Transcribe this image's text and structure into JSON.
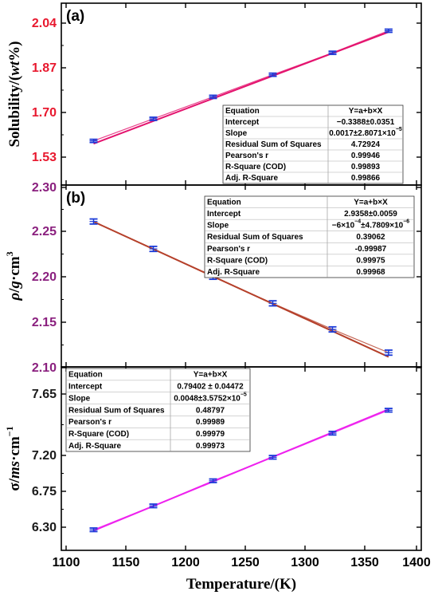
{
  "chart_data": [
    {
      "type": "line",
      "panel_label": "(a)",
      "ylabel": "Solubility/(wt%)",
      "ylabel_parts": [
        "Solubility/(",
        "wt",
        "%)"
      ],
      "x": [
        1123,
        1173,
        1223,
        1273,
        1323,
        1373
      ],
      "y": [
        1.5918,
        1.6758,
        1.7594,
        1.8436,
        1.9271,
        2.0111
      ],
      "error": [
        0.006,
        0.006,
        0.006,
        0.006,
        0.006,
        0.006
      ],
      "fit_y": [
        1.581,
        1.666,
        1.751,
        1.836,
        1.921,
        2.006
      ],
      "ylim": [
        1.51,
        2.07
      ],
      "yticks": [
        "1.53",
        "1.70",
        "1.87",
        "2.04"
      ],
      "ytick_values": [
        1.53,
        1.7,
        1.87,
        2.04
      ],
      "tick_color": "#e8182e",
      "line_color": "#e4136e",
      "table": {
        "header": [
          "Equation",
          "Y=a+b×X"
        ],
        "rows": [
          {
            "label": "Intercept",
            "value": "−0.3388±0.0351"
          },
          {
            "label": "Slope",
            "value": "0.0017±2.8071×10",
            "sup": "−5"
          },
          {
            "label": "Residual Sum of Squares",
            "value": "4.72924"
          },
          {
            "label": "Pearson's r",
            "value": "0.99946"
          },
          {
            "label": "R-Square (COD)",
            "value": "0.99893"
          },
          {
            "label": "Adj. R-Square",
            "value": "0.99866"
          }
        ]
      }
    },
    {
      "type": "line",
      "panel_label": "(b)",
      "ylabel": "ρ/g·cm3",
      "ylabel_parts": [
        "ρ",
        "/",
        "g",
        "·cm",
        "3"
      ],
      "x": [
        1123,
        1173,
        1223,
        1273,
        1323,
        1373
      ],
      "y": [
        2.2622,
        2.2318,
        2.2009,
        2.1714,
        2.1425,
        2.1167
      ],
      "error": [
        0.0028,
        0.0028,
        0.0028,
        0.0028,
        0.0028,
        0.0028
      ],
      "fit_y": [
        2.262,
        2.232,
        2.202,
        2.172,
        2.142,
        2.112
      ],
      "ylim": [
        2.1,
        2.3
      ],
      "yticks": [
        "2.10",
        "2.15",
        "2.20",
        "2.25",
        "2.30"
      ],
      "ytick_values": [
        2.1,
        2.15,
        2.2,
        2.25,
        2.3
      ],
      "tick_color": "#8a1f7e",
      "line_color": "#b5402a",
      "table": {
        "header": [
          "Equation",
          "Y=a+b×X"
        ],
        "rows": [
          {
            "label": "Intercept",
            "value": "2.9358±0.0059"
          },
          {
            "label": "Slope",
            "value": "−6×10",
            "sup": "−4",
            "value2": "±4.7809×10",
            "sup2": "−6"
          },
          {
            "label": "Residual Sum of Squares",
            "value": "0.39062"
          },
          {
            "label": "Pearson's r",
            "value": "-0.99987"
          },
          {
            "label": "R-Square (COD)",
            "value": "0.99975"
          },
          {
            "label": "Adj. R-Square",
            "value": "0.99968"
          }
        ]
      }
    },
    {
      "type": "line",
      "panel_label": "(c)",
      "ylabel": "σ/ms·cm−1",
      "ylabel_parts": [
        "σ/",
        "ms",
        "·cm",
        "−1"
      ],
      "x": [
        1123,
        1173,
        1223,
        1273,
        1323,
        1373
      ],
      "xlim": [
        1100,
        1400
      ],
      "xticks": [
        "1100",
        "1150",
        "1200",
        "1250",
        "1300",
        "1350",
        "1400"
      ],
      "xtick_values": [
        1100,
        1150,
        1200,
        1250,
        1300,
        1350,
        1400
      ],
      "xlabel": "Temperature/(K)",
      "y": [
        6.274,
        6.5162,
        6.7707,
        7.0087,
        7.2529,
        7.4856
      ],
      "error": [
        0.018,
        0.018,
        0.018,
        0.018,
        0.018,
        0.018
      ],
      "fit_y": [
        6.265,
        6.511,
        6.757,
        7.003,
        7.249,
        7.495
      ],
      "ylim": [
        6.15,
        7.8
      ],
      "yticks": [
        "6.30",
        "6.75",
        "7.20",
        "7.65"
      ],
      "ytick_values": [
        6.3,
        6.75,
        7.2,
        7.65
      ],
      "tick_color": "#1a1a1a",
      "line_color": "#ee22ee",
      "table": {
        "header": [
          "Equation",
          "Y=a+b×X"
        ],
        "rows": [
          {
            "label": "Intercept",
            "value": "0.79402 ± 0.04472"
          },
          {
            "label": "Slope",
            "value": "0.0048±3.5752×10",
            "sup": "−5"
          },
          {
            "label": "Residual Sum of Squares",
            "value": "0.48797"
          },
          {
            "label": "Pearson's r",
            "value": "0.99989"
          },
          {
            "label": "R-Square (COD)",
            "value": "0.99979"
          },
          {
            "label": "Adj. R-Square",
            "value": "0.99973"
          }
        ]
      }
    }
  ],
  "colors": {
    "marker": "#1a3ad8",
    "axis": "#000000"
  }
}
